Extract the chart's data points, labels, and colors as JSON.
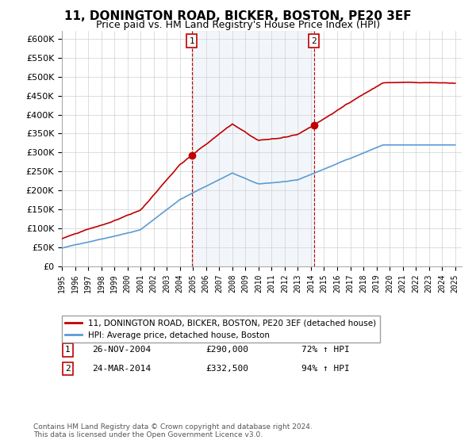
{
  "title": "11, DONINGTON ROAD, BICKER, BOSTON, PE20 3EF",
  "subtitle": "Price paid vs. HM Land Registry's House Price Index (HPI)",
  "ylim": [
    0,
    620000
  ],
  "yticks": [
    0,
    50000,
    100000,
    150000,
    200000,
    250000,
    300000,
    350000,
    400000,
    450000,
    500000,
    550000,
    600000
  ],
  "sale1_year": 2004.9,
  "sale1_price": 290000,
  "sale1_label": "1",
  "sale2_year": 2014.23,
  "sale2_price": 332500,
  "sale2_label": "2",
  "hpi_color": "#5b9bd5",
  "price_color": "#c00000",
  "sale_marker_color": "#c00000",
  "vline_color": "#c00000",
  "shade_color": "#dce6f1",
  "legend_property_label": "11, DONINGTON ROAD, BICKER, BOSTON, PE20 3EF (detached house)",
  "legend_hpi_label": "HPI: Average price, detached house, Boston",
  "annotation1_date": "26-NOV-2004",
  "annotation1_price": "£290,000",
  "annotation1_pct": "72% ↑ HPI",
  "annotation2_date": "24-MAR-2014",
  "annotation2_price": "£332,500",
  "annotation2_pct": "94% ↑ HPI",
  "footer": "Contains HM Land Registry data © Crown copyright and database right 2024.\nThis data is licensed under the Open Government Licence v3.0.",
  "bg_color": "#ffffff",
  "grid_color": "#d0d0d0",
  "title_fontsize": 11,
  "subtitle_fontsize": 9,
  "tick_fontsize": 8
}
